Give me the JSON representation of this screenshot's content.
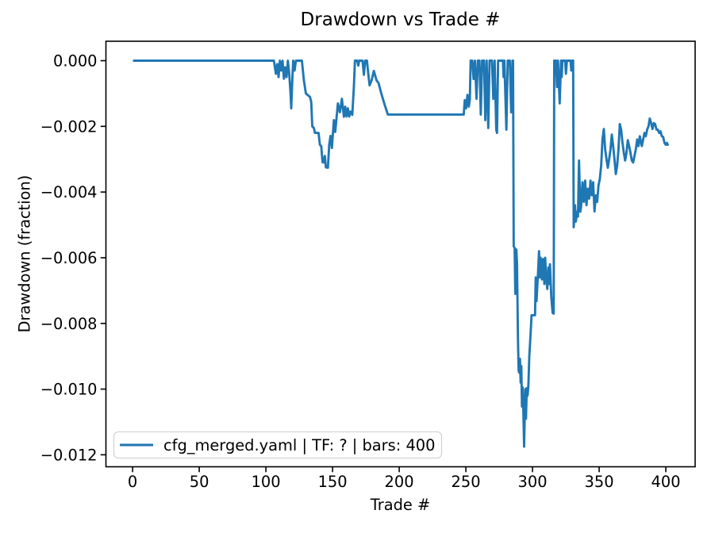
{
  "figure": {
    "title": "Drawdown vs Trade #",
    "xlabel": "Trade #",
    "ylabel": "Drawdown (fraction)"
  },
  "legend": {
    "label": "cfg_merged.yaml | TF: ? | bars: 400",
    "line_color": "#1f77b4",
    "position": "lower left"
  },
  "chart_data": {
    "type": "line",
    "title": "Drawdown vs Trade #",
    "xlabel": "Trade #",
    "ylabel": "Drawdown (fraction)",
    "grid": false,
    "legend_position": "lower left",
    "xlim": [
      -20,
      422
    ],
    "ylim": [
      -0.012365,
      0.000592
    ],
    "xticks": [
      0,
      50,
      100,
      150,
      200,
      250,
      300,
      350,
      400
    ],
    "yticks": [
      0.0,
      -0.002,
      -0.004,
      -0.006,
      -0.008,
      -0.01,
      -0.012
    ],
    "ytick_labels": [
      "0.000",
      "−0.002",
      "−0.004",
      "−0.006",
      "−0.008",
      "−0.010",
      "−0.012"
    ],
    "series": [
      {
        "name": "cfg_merged.yaml | TF: ? | bars: 400",
        "color": "#1f77b4",
        "line_width": 2.9,
        "points": [
          [
            1,
            0
          ],
          [
            106,
            0
          ],
          [
            107.5,
            -0.0004
          ],
          [
            108.5,
            -0.0001
          ],
          [
            109.5,
            -0.0005
          ],
          [
            110.5,
            0
          ],
          [
            111.5,
            -0.0003
          ],
          [
            112.5,
            0
          ],
          [
            113.5,
            -0.00055
          ],
          [
            114.5,
            -0.0002
          ],
          [
            115.5,
            -0.0005
          ],
          [
            116.5,
            0
          ],
          [
            117.5,
            -0.0004
          ],
          [
            118.5,
            -0.001
          ],
          [
            119,
            -0.00145
          ],
          [
            120,
            -0.0004
          ],
          [
            120.5,
            0
          ],
          [
            121.5,
            -0.0003
          ],
          [
            122.5,
            0
          ],
          [
            127,
            0
          ],
          [
            128.5,
            -0.0006
          ],
          [
            130,
            -0.001
          ],
          [
            131.5,
            -0.00105
          ],
          [
            133,
            -0.0011
          ],
          [
            134,
            -0.00125
          ],
          [
            134.8,
            -0.002
          ],
          [
            136,
            -0.00205
          ],
          [
            136.8,
            -0.0022
          ],
          [
            139.5,
            -0.0022
          ],
          [
            140.5,
            -0.00256
          ],
          [
            141.5,
            -0.0026
          ],
          [
            142.5,
            -0.00309
          ],
          [
            143.5,
            -0.0031
          ],
          [
            144.2,
            -0.0029
          ],
          [
            145,
            -0.00325
          ],
          [
            146.5,
            -0.00326
          ],
          [
            147.5,
            -0.00256
          ],
          [
            148.5,
            -0.00229
          ],
          [
            149.5,
            -0.00266
          ],
          [
            151,
            -0.00181
          ],
          [
            152,
            -0.00217
          ],
          [
            154,
            -0.0013
          ],
          [
            155.5,
            -0.00157
          ],
          [
            157,
            -0.00116
          ],
          [
            158.5,
            -0.00171
          ],
          [
            159.5,
            -0.0014
          ],
          [
            160.5,
            -0.0017
          ],
          [
            161.5,
            -0.00145
          ],
          [
            162.5,
            -0.0017
          ],
          [
            163.5,
            -0.00155
          ],
          [
            164.8,
            -0.00165
          ],
          [
            166,
            -0.0008
          ],
          [
            166.8,
            0
          ],
          [
            168.5,
            0
          ],
          [
            169.3,
            -0.00015
          ],
          [
            170,
            0
          ],
          [
            172.5,
            0
          ],
          [
            173.5,
            -0.00043
          ],
          [
            174.5,
            0
          ],
          [
            175.8,
            0
          ],
          [
            176.8,
            -0.0004
          ],
          [
            177.8,
            -0.00075
          ],
          [
            179.3,
            -0.0006
          ],
          [
            181,
            -0.00031
          ],
          [
            183,
            -0.0006
          ],
          [
            184.5,
            -0.00068
          ],
          [
            186.5,
            -0.00099
          ],
          [
            189,
            -0.00133
          ],
          [
            191.5,
            -0.00164
          ],
          [
            248.4,
            -0.00164
          ],
          [
            249.2,
            -0.0012
          ],
          [
            250.2,
            -0.00145
          ],
          [
            251.2,
            -0.00104
          ],
          [
            252.2,
            -0.0014
          ],
          [
            253,
            -0.00118
          ],
          [
            253.6,
            0
          ],
          [
            254.8,
            0
          ],
          [
            255.8,
            -0.00056
          ],
          [
            256.8,
            0
          ],
          [
            258,
            -0.00116
          ],
          [
            259,
            0
          ],
          [
            260.2,
            0
          ],
          [
            261.2,
            -0.00164
          ],
          [
            262.2,
            0
          ],
          [
            263.6,
            0
          ],
          [
            264.6,
            -0.00181
          ],
          [
            265.6,
            0
          ],
          [
            266.8,
            -0.00205
          ],
          [
            267.8,
            0
          ],
          [
            269.6,
            0
          ],
          [
            270.6,
            -0.00116
          ],
          [
            271.6,
            0
          ],
          [
            272.8,
            -0.0021
          ],
          [
            273.4,
            -0.0022
          ],
          [
            274.2,
            0
          ],
          [
            277.8,
            0
          ],
          [
            278.3,
            -0.0005
          ],
          [
            278.9,
            0
          ],
          [
            280.4,
            -0.0021
          ],
          [
            281.4,
            0
          ],
          [
            283,
            0
          ],
          [
            284,
            -0.00157
          ],
          [
            285,
            0
          ],
          [
            285.4,
            0
          ],
          [
            285.9,
            -0.00565
          ],
          [
            286.6,
            -0.0057
          ],
          [
            287.1,
            -0.0071
          ],
          [
            287.9,
            -0.00575
          ],
          [
            288.4,
            -0.0062
          ],
          [
            289.1,
            -0.0085
          ],
          [
            289.6,
            -0.00944
          ],
          [
            290.1,
            -0.0095
          ],
          [
            290.6,
            -0.00908
          ],
          [
            291.1,
            -0.0098
          ],
          [
            291.6,
            -0.0093
          ],
          [
            292.1,
            -0.01053
          ],
          [
            292.6,
            -0.00995
          ],
          [
            293.1,
            -0.0106
          ],
          [
            293.7,
            -0.01175
          ],
          [
            294.6,
            -0.01
          ],
          [
            295.1,
            -0.0109
          ],
          [
            295.7,
            -0.00997
          ],
          [
            296.3,
            -0.0102
          ],
          [
            296.9,
            -0.0099
          ],
          [
            297.6,
            -0.009
          ],
          [
            298.6,
            -0.0083
          ],
          [
            299.3,
            -0.00775
          ],
          [
            301.9,
            -0.00775
          ],
          [
            302.4,
            -0.0066
          ],
          [
            303,
            -0.00732
          ],
          [
            304.1,
            -0.0065
          ],
          [
            304.9,
            -0.0058
          ],
          [
            305.5,
            -0.0066
          ],
          [
            306.1,
            -0.006
          ],
          [
            307.1,
            -0.00666
          ],
          [
            307.9,
            -0.00604
          ],
          [
            308.9,
            -0.0068
          ],
          [
            309.5,
            -0.006
          ],
          [
            310.1,
            -0.0065
          ],
          [
            311.1,
            -0.00695
          ],
          [
            311.9,
            -0.0063
          ],
          [
            312.5,
            -0.0068
          ],
          [
            313.1,
            -0.0062
          ],
          [
            314.1,
            -0.0072
          ],
          [
            315.1,
            -0.00768
          ],
          [
            315.9,
            -0.0077
          ],
          [
            316.3,
            0
          ],
          [
            317.6,
            0
          ],
          [
            318.4,
            -0.0008
          ],
          [
            319.1,
            0
          ],
          [
            320.4,
            -0.0013
          ],
          [
            321.4,
            0
          ],
          [
            321.9,
            -0.0005
          ],
          [
            322.4,
            0
          ],
          [
            324.5,
            0
          ],
          [
            325.1,
            -0.0004
          ],
          [
            325.8,
            0
          ],
          [
            328.5,
            0
          ],
          [
            329.1,
            -0.0003
          ],
          [
            329.8,
            0
          ],
          [
            330.5,
            0
          ],
          [
            330.9,
            -0.00507
          ],
          [
            331.9,
            -0.0044
          ],
          [
            332.5,
            -0.0049
          ],
          [
            333.4,
            -0.0046
          ],
          [
            334.1,
            -0.00475
          ],
          [
            334.9,
            -0.00304
          ],
          [
            335.9,
            -0.0046
          ],
          [
            336.5,
            -0.00442
          ],
          [
            337.5,
            -0.0037
          ],
          [
            338.5,
            -0.0043
          ],
          [
            339.5,
            -0.00365
          ],
          [
            340.5,
            -0.0044
          ],
          [
            341.5,
            -0.0039
          ],
          [
            342.5,
            -0.0042
          ],
          [
            343.5,
            -0.00365
          ],
          [
            344.5,
            -0.0041
          ],
          [
            345.5,
            -0.0037
          ],
          [
            346.5,
            -0.00459
          ],
          [
            347.5,
            -0.0041
          ],
          [
            348.5,
            -0.0043
          ],
          [
            349.5,
            -0.0038
          ],
          [
            350.5,
            -0.0036
          ],
          [
            351.5,
            -0.0032
          ],
          [
            352.5,
            -0.0024
          ],
          [
            353.5,
            -0.00208
          ],
          [
            354.5,
            -0.0027
          ],
          [
            355.5,
            -0.003
          ],
          [
            356.5,
            -0.00326
          ],
          [
            357.5,
            -0.003
          ],
          [
            358.5,
            -0.0027
          ],
          [
            359.5,
            -0.00225
          ],
          [
            360.5,
            -0.0026
          ],
          [
            361.5,
            -0.003
          ],
          [
            362.5,
            -0.00345
          ],
          [
            363.5,
            -0.0032
          ],
          [
            364.5,
            -0.0027
          ],
          [
            365.5,
            -0.00193
          ],
          [
            366.5,
            -0.0021
          ],
          [
            367.5,
            -0.0025
          ],
          [
            368.5,
            -0.0028
          ],
          [
            369.5,
            -0.00304
          ],
          [
            370.5,
            -0.0028
          ],
          [
            371.5,
            -0.00242
          ],
          [
            372.5,
            -0.0026
          ],
          [
            373.5,
            -0.0028
          ],
          [
            374.5,
            -0.00304
          ],
          [
            375.5,
            -0.0031
          ],
          [
            376.5,
            -0.0029
          ],
          [
            377.5,
            -0.0027
          ],
          [
            378.5,
            -0.0024
          ],
          [
            379.5,
            -0.0026
          ],
          [
            380.5,
            -0.0023
          ],
          [
            382,
            -0.0026
          ],
          [
            383,
            -0.0024
          ],
          [
            384,
            -0.0022
          ],
          [
            385,
            -0.0023
          ],
          [
            386,
            -0.0021
          ],
          [
            387,
            -0.002
          ],
          [
            388,
            -0.00176
          ],
          [
            389,
            -0.0019
          ],
          [
            390,
            -0.00208
          ],
          [
            391,
            -0.0019
          ],
          [
            392,
            -0.00193
          ],
          [
            393,
            -0.0021
          ],
          [
            394,
            -0.0021
          ],
          [
            395,
            -0.0022
          ],
          [
            396,
            -0.00215
          ],
          [
            397,
            -0.0023
          ],
          [
            398,
            -0.00232
          ],
          [
            399,
            -0.0025
          ],
          [
            400,
            -0.00256
          ],
          [
            400.8,
            -0.0025
          ],
          [
            401.5,
            -0.00256
          ]
        ]
      }
    ]
  }
}
